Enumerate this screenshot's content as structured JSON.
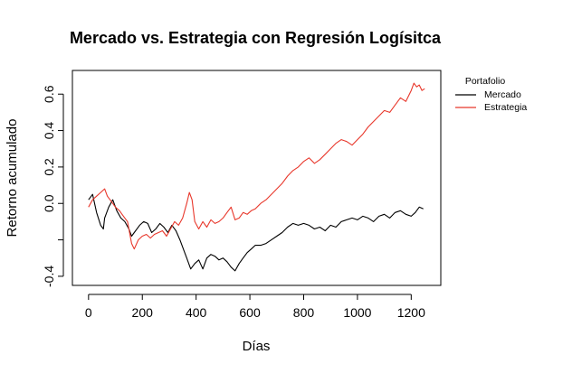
{
  "chart_data": {
    "type": "line",
    "title": "Mercado vs. Estrategia con Regresión Logísitca",
    "xlabel": "Días",
    "ylabel": "Retorno acumulado",
    "xlim": [
      -60,
      1310
    ],
    "ylim": [
      -0.45,
      0.73
    ],
    "xticks": [
      0,
      200,
      400,
      600,
      800,
      1000,
      1200
    ],
    "yticks": [
      -0.4,
      -0.2,
      0.0,
      0.2,
      0.4,
      0.6
    ],
    "yticklabels": [
      "-0.4",
      "",
      "0.0",
      "0.2",
      "0.4",
      "0.6"
    ],
    "grid": false,
    "legend": {
      "title": "Portafolio",
      "position": "outside-top-right"
    },
    "series": [
      {
        "name": "Mercado",
        "color": "#000000",
        "x": [
          0,
          15,
          30,
          45,
          55,
          60,
          75,
          90,
          105,
          120,
          135,
          150,
          160,
          175,
          190,
          205,
          220,
          235,
          250,
          265,
          280,
          295,
          310,
          325,
          340,
          355,
          365,
          380,
          395,
          410,
          425,
          440,
          455,
          470,
          485,
          500,
          515,
          530,
          545,
          560,
          575,
          590,
          605,
          620,
          640,
          660,
          680,
          700,
          720,
          740,
          760,
          780,
          800,
          820,
          840,
          860,
          880,
          900,
          920,
          940,
          960,
          980,
          1000,
          1020,
          1040,
          1060,
          1080,
          1100,
          1120,
          1140,
          1160,
          1180,
          1200,
          1215,
          1230,
          1245
        ],
        "values": [
          0.02,
          0.05,
          -0.05,
          -0.12,
          -0.14,
          -0.08,
          -0.02,
          0.02,
          -0.04,
          -0.08,
          -0.1,
          -0.14,
          -0.18,
          -0.15,
          -0.12,
          -0.1,
          -0.11,
          -0.16,
          -0.14,
          -0.11,
          -0.13,
          -0.16,
          -0.12,
          -0.15,
          -0.2,
          -0.26,
          -0.3,
          -0.36,
          -0.33,
          -0.31,
          -0.36,
          -0.3,
          -0.28,
          -0.29,
          -0.31,
          -0.3,
          -0.32,
          -0.35,
          -0.37,
          -0.33,
          -0.3,
          -0.27,
          -0.25,
          -0.23,
          -0.23,
          -0.22,
          -0.2,
          -0.18,
          -0.16,
          -0.13,
          -0.11,
          -0.12,
          -0.11,
          -0.12,
          -0.14,
          -0.13,
          -0.15,
          -0.12,
          -0.13,
          -0.1,
          -0.09,
          -0.08,
          -0.09,
          -0.07,
          -0.08,
          -0.1,
          -0.07,
          -0.06,
          -0.08,
          -0.05,
          -0.04,
          -0.06,
          -0.07,
          -0.05,
          -0.02,
          -0.03
        ]
      },
      {
        "name": "Estrategia",
        "color": "#e8372b",
        "x": [
          0,
          15,
          30,
          45,
          60,
          70,
          85,
          100,
          115,
          130,
          145,
          160,
          170,
          185,
          200,
          215,
          230,
          245,
          260,
          275,
          290,
          305,
          320,
          335,
          350,
          365,
          375,
          385,
          395,
          410,
          425,
          440,
          455,
          470,
          485,
          500,
          515,
          530,
          545,
          560,
          575,
          590,
          605,
          620,
          640,
          660,
          680,
          700,
          720,
          740,
          760,
          780,
          800,
          820,
          840,
          860,
          880,
          900,
          920,
          940,
          960,
          980,
          1000,
          1020,
          1040,
          1060,
          1080,
          1100,
          1120,
          1140,
          1160,
          1180,
          1200,
          1210,
          1220,
          1230,
          1240,
          1250
        ],
        "values": [
          -0.02,
          0.02,
          0.04,
          0.06,
          0.08,
          0.04,
          0.01,
          -0.02,
          -0.04,
          -0.07,
          -0.1,
          -0.22,
          -0.25,
          -0.2,
          -0.18,
          -0.17,
          -0.19,
          -0.17,
          -0.16,
          -0.15,
          -0.18,
          -0.14,
          -0.1,
          -0.12,
          -0.08,
          0.0,
          0.06,
          0.02,
          -0.1,
          -0.14,
          -0.1,
          -0.13,
          -0.09,
          -0.11,
          -0.1,
          -0.08,
          -0.05,
          -0.02,
          -0.09,
          -0.08,
          -0.05,
          -0.06,
          -0.04,
          -0.03,
          0.0,
          0.02,
          0.05,
          0.08,
          0.11,
          0.15,
          0.18,
          0.2,
          0.23,
          0.25,
          0.22,
          0.24,
          0.27,
          0.3,
          0.33,
          0.35,
          0.34,
          0.32,
          0.35,
          0.38,
          0.42,
          0.45,
          0.48,
          0.51,
          0.5,
          0.54,
          0.58,
          0.56,
          0.62,
          0.66,
          0.64,
          0.65,
          0.62,
          0.63
        ]
      }
    ]
  }
}
